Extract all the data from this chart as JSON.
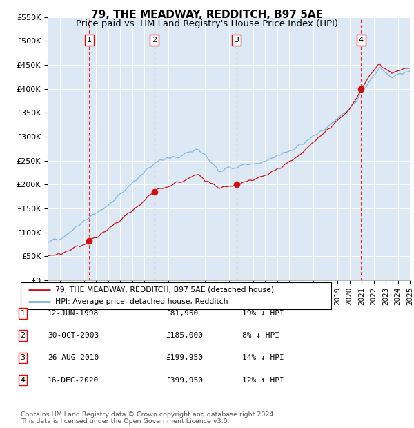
{
  "title": "79, THE MEADWAY, REDDITCH, B97 5AE",
  "subtitle": "Price paid vs. HM Land Registry's House Price Index (HPI)",
  "x_start_year": 1995,
  "x_end_year": 2025,
  "y_min": 0,
  "y_max": 550000,
  "y_ticks": [
    0,
    50000,
    100000,
    150000,
    200000,
    250000,
    300000,
    350000,
    400000,
    450000,
    500000,
    550000
  ],
  "y_tick_labels": [
    "£0",
    "£50K",
    "£100K",
    "£150K",
    "£200K",
    "£250K",
    "£300K",
    "£350K",
    "£400K",
    "£450K",
    "£500K",
    "£550K"
  ],
  "sale_dates": [
    1998.44,
    2003.83,
    2010.65,
    2020.96
  ],
  "sale_prices": [
    81950,
    185000,
    199950,
    399950
  ],
  "sale_labels": [
    "1",
    "2",
    "3",
    "4"
  ],
  "hpi_color": "#7ab3d8",
  "price_color": "#cc1111",
  "vline_color": "#ee0000",
  "background_color": "#dce9f5",
  "legend_line1": "79, THE MEADWAY, REDDITCH, B97 5AE (detached house)",
  "legend_line2": "HPI: Average price, detached house, Redditch",
  "table_data": [
    [
      "1",
      "12-JUN-1998",
      "£81,950",
      "19% ↓ HPI"
    ],
    [
      "2",
      "30-OCT-2003",
      "£185,000",
      "8% ↓ HPI"
    ],
    [
      "3",
      "26-AUG-2010",
      "£199,950",
      "14% ↓ HPI"
    ],
    [
      "4",
      "16-DEC-2020",
      "£399,950",
      "12% ↑ HPI"
    ]
  ],
  "footnote": "Contains HM Land Registry data © Crown copyright and database right 2024.\nThis data is licensed under the Open Government Licence v3.0.",
  "title_fontsize": 11,
  "subtitle_fontsize": 9.5,
  "tick_fontsize": 8,
  "label_fontsize": 8.5
}
